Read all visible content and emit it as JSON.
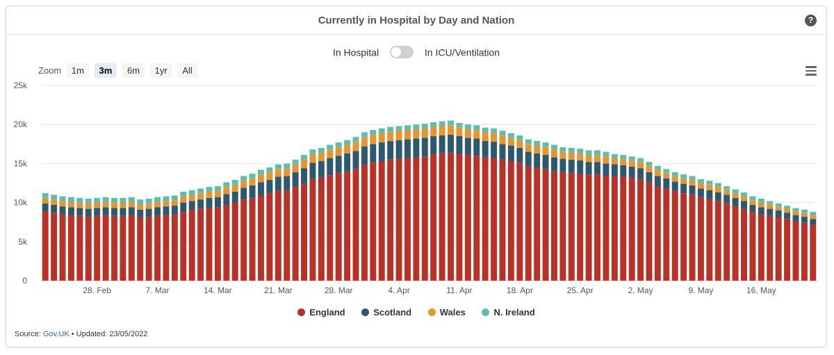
{
  "header": {
    "title": "Currently in Hospital by Day and Nation",
    "help_icon": "question-circle-icon"
  },
  "toggle": {
    "left_label": "In Hospital",
    "right_label": "In ICU/Ventilation",
    "state": "off"
  },
  "zoom": {
    "label": "Zoom",
    "options": [
      "1m",
      "3m",
      "6m",
      "1yr",
      "All"
    ],
    "active": "3m"
  },
  "menu_icon": "hamburger-menu-icon",
  "legend": [
    {
      "name": "England",
      "color": "#b83228"
    },
    {
      "name": "Scotland",
      "color": "#2c5870"
    },
    {
      "name": "Wales",
      "color": "#e8952f"
    },
    {
      "name": "N. Ireland",
      "color": "#5bbfb0"
    }
  ],
  "source": {
    "prefix": "Source:",
    "link_text": "Gov.UK",
    "separator": "•",
    "updated": "Updated: 23/05/2022"
  },
  "chart_data": {
    "type": "bar",
    "stacked": true,
    "title": "Currently in Hospital by Day and Nation",
    "ylim": [
      0,
      25000
    ],
    "y_ticks": [
      0,
      5000,
      10000,
      15000,
      20000,
      25000
    ],
    "y_tick_labels": [
      "0",
      "5k",
      "10k",
      "15k",
      "20k",
      "25k"
    ],
    "x_tick_labels": [
      {
        "label": "28. Feb",
        "index": 6
      },
      {
        "label": "7. Mar",
        "index": 13
      },
      {
        "label": "14. Mar",
        "index": 20
      },
      {
        "label": "21. Mar",
        "index": 27
      },
      {
        "label": "28. Mar",
        "index": 34
      },
      {
        "label": "4. Apr",
        "index": 41
      },
      {
        "label": "11. Apr",
        "index": 48
      },
      {
        "label": "18. Apr",
        "index": 55
      },
      {
        "label": "25. Apr",
        "index": 62
      },
      {
        "label": "2. May",
        "index": 69
      },
      {
        "label": "9. May",
        "index": 76
      },
      {
        "label": "16. May",
        "index": 83
      }
    ],
    "categories": [
      "2022-02-22",
      "2022-02-23",
      "2022-02-24",
      "2022-02-25",
      "2022-02-26",
      "2022-02-27",
      "2022-02-28",
      "2022-03-01",
      "2022-03-02",
      "2022-03-03",
      "2022-03-04",
      "2022-03-05",
      "2022-03-06",
      "2022-03-07",
      "2022-03-08",
      "2022-03-09",
      "2022-03-10",
      "2022-03-11",
      "2022-03-12",
      "2022-03-13",
      "2022-03-14",
      "2022-03-15",
      "2022-03-16",
      "2022-03-17",
      "2022-03-18",
      "2022-03-19",
      "2022-03-20",
      "2022-03-21",
      "2022-03-22",
      "2022-03-23",
      "2022-03-24",
      "2022-03-25",
      "2022-03-26",
      "2022-03-27",
      "2022-03-28",
      "2022-03-29",
      "2022-03-30",
      "2022-03-31",
      "2022-04-01",
      "2022-04-02",
      "2022-04-03",
      "2022-04-04",
      "2022-04-05",
      "2022-04-06",
      "2022-04-07",
      "2022-04-08",
      "2022-04-09",
      "2022-04-10",
      "2022-04-11",
      "2022-04-12",
      "2022-04-13",
      "2022-04-14",
      "2022-04-15",
      "2022-04-16",
      "2022-04-17",
      "2022-04-18",
      "2022-04-19",
      "2022-04-20",
      "2022-04-21",
      "2022-04-22",
      "2022-04-23",
      "2022-04-24",
      "2022-04-25",
      "2022-04-26",
      "2022-04-27",
      "2022-04-28",
      "2022-04-29",
      "2022-04-30",
      "2022-05-01",
      "2022-05-02",
      "2022-05-03",
      "2022-05-04",
      "2022-05-05",
      "2022-05-06",
      "2022-05-07",
      "2022-05-08",
      "2022-05-09",
      "2022-05-10",
      "2022-05-11",
      "2022-05-12",
      "2022-05-13",
      "2022-05-14",
      "2022-05-15",
      "2022-05-16",
      "2022-05-17",
      "2022-05-18",
      "2022-05-19",
      "2022-05-20",
      "2022-05-21",
      "2022-05-22"
    ],
    "series": [
      {
        "name": "England",
        "color": "#b83228",
        "values": [
          8900,
          8700,
          8500,
          8400,
          8300,
          8200,
          8300,
          8400,
          8300,
          8300,
          8400,
          8100,
          8200,
          8300,
          8400,
          8500,
          8800,
          9000,
          9200,
          9300,
          9400,
          9700,
          10000,
          10400,
          10600,
          10900,
          11200,
          11500,
          11600,
          12000,
          12400,
          13000,
          13200,
          13500,
          13800,
          14000,
          14300,
          14800,
          15100,
          15300,
          15500,
          15600,
          15700,
          15800,
          15900,
          16200,
          16300,
          16400,
          16200,
          16100,
          16000,
          15800,
          15700,
          15500,
          15300,
          15100,
          14600,
          14500,
          14300,
          14000,
          13900,
          13800,
          13700,
          13600,
          13600,
          13400,
          13400,
          13300,
          13200,
          13000,
          12600,
          12100,
          11800,
          11500,
          11200,
          11000,
          10700,
          10500,
          10200,
          10000,
          9600,
          9200,
          8800,
          8500,
          8300,
          8100,
          7900,
          7600,
          7400,
          7200
        ]
      },
      {
        "name": "Scotland",
        "color": "#2c5870",
        "values": [
          1000,
          1000,
          1000,
          1000,
          1000,
          1000,
          1000,
          1000,
          1000,
          1000,
          1000,
          1000,
          1000,
          1100,
          1100,
          1100,
          1200,
          1200,
          1200,
          1300,
          1300,
          1400,
          1400,
          1500,
          1600,
          1700,
          1700,
          1800,
          1800,
          1900,
          2000,
          2100,
          2100,
          2200,
          2200,
          2300,
          2300,
          2400,
          2400,
          2400,
          2400,
          2400,
          2400,
          2400,
          2400,
          2300,
          2300,
          2300,
          2300,
          2200,
          2200,
          2100,
          2100,
          2000,
          2000,
          1900,
          1900,
          1800,
          1800,
          1800,
          1700,
          1700,
          1700,
          1600,
          1600,
          1600,
          1500,
          1500,
          1400,
          1400,
          1300,
          1300,
          1300,
          1200,
          1200,
          1200,
          1100,
          1100,
          1100,
          1000,
          1000,
          1000,
          900,
          900,
          900,
          900,
          800,
          800,
          800,
          700
        ]
      },
      {
        "name": "Wales",
        "color": "#e8952f",
        "values": [
          700,
          700,
          700,
          700,
          700,
          700,
          700,
          700,
          700,
          700,
          700,
          700,
          700,
          700,
          700,
          700,
          800,
          800,
          800,
          800,
          800,
          900,
          900,
          900,
          900,
          1000,
          1000,
          1000,
          1000,
          1000,
          1100,
          1100,
          1100,
          1100,
          1100,
          1100,
          1200,
          1200,
          1200,
          1200,
          1200,
          1200,
          1200,
          1200,
          1200,
          1200,
          1200,
          1200,
          1100,
          1100,
          1100,
          1100,
          1100,
          1100,
          1000,
          1000,
          1000,
          1000,
          1000,
          1000,
          900,
          900,
          900,
          900,
          900,
          900,
          800,
          800,
          800,
          800,
          800,
          800,
          700,
          700,
          700,
          700,
          700,
          700,
          700,
          600,
          600,
          600,
          600,
          600,
          600,
          500,
          500,
          500,
          500,
          500
        ]
      },
      {
        "name": "N. Ireland",
        "color": "#5bbfb0",
        "values": [
          600,
          600,
          600,
          600,
          600,
          600,
          600,
          600,
          600,
          600,
          600,
          600,
          600,
          600,
          600,
          600,
          600,
          600,
          600,
          600,
          600,
          600,
          600,
          600,
          600,
          600,
          600,
          600,
          600,
          600,
          600,
          600,
          600,
          600,
          600,
          600,
          600,
          600,
          600,
          600,
          600,
          600,
          600,
          600,
          600,
          600,
          600,
          600,
          600,
          600,
          600,
          600,
          600,
          600,
          600,
          600,
          600,
          600,
          600,
          600,
          600,
          600,
          600,
          600,
          600,
          600,
          500,
          500,
          500,
          500,
          500,
          500,
          500,
          500,
          500,
          500,
          500,
          500,
          500,
          500,
          500,
          500,
          500,
          500,
          400,
          400,
          400,
          400,
          400,
          400
        ]
      }
    ],
    "grid": true,
    "legend_position": "bottom-center"
  }
}
